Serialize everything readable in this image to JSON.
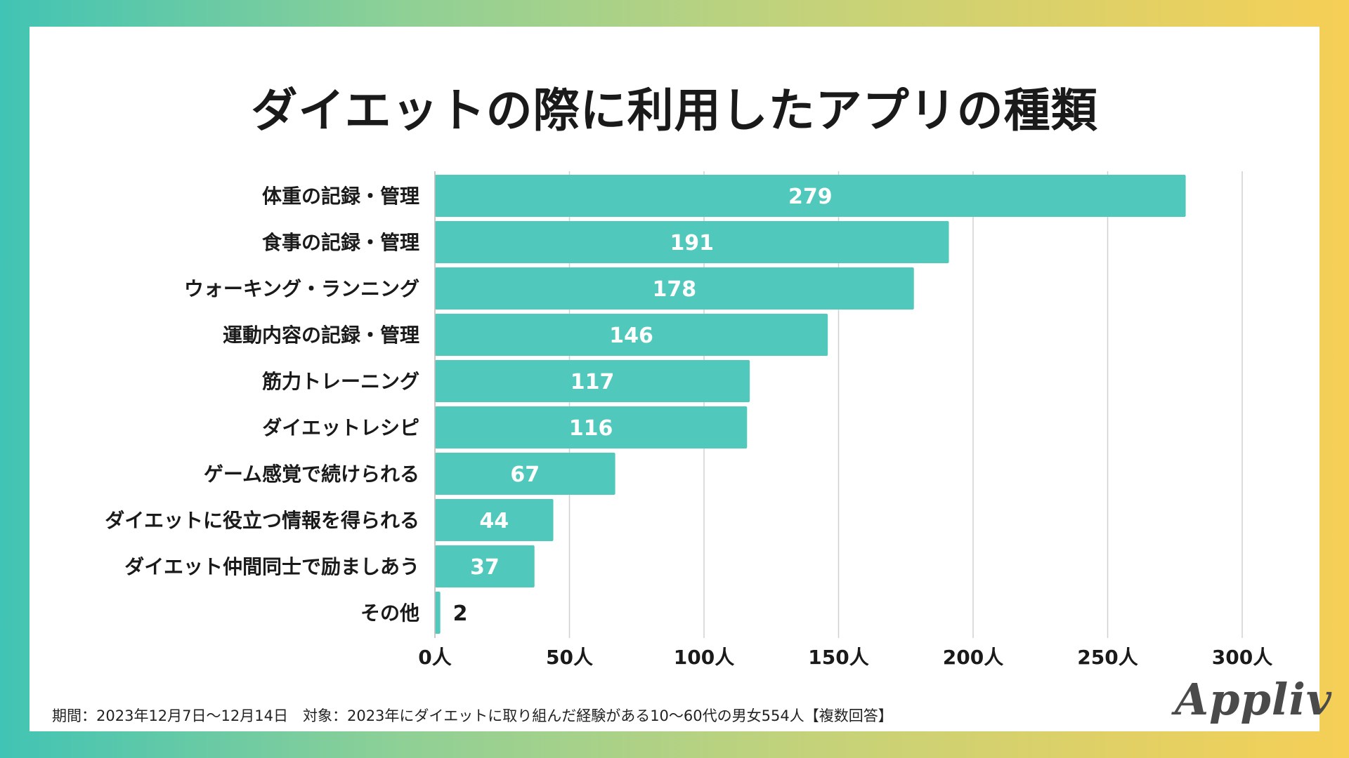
{
  "chart_data": {
    "type": "bar",
    "orientation": "horizontal",
    "title": "ダイエットの際に利用したアプリの種類",
    "categories": [
      "体重の記録・管理",
      "食事の記録・管理",
      "ウォーキング・ランニング",
      "運動内容の記録・管理",
      "筋力トレーニング",
      "ダイエットレシピ",
      "ゲーム感覚で続けられる",
      "ダイエットに役立つ情報を得られる",
      "ダイエット仲間同士で励ましあう",
      "その他"
    ],
    "values": [
      279,
      191,
      178,
      146,
      117,
      116,
      67,
      44,
      37,
      2
    ],
    "xlim": [
      0,
      300
    ],
    "ticks": [
      0,
      50,
      100,
      150,
      200,
      250,
      300
    ],
    "tick_labels": [
      "0人",
      "50人",
      "100人",
      "150人",
      "200人",
      "250人",
      "300人"
    ],
    "grid": true,
    "bar_color": "#50c8bc",
    "xlabel": "",
    "ylabel": ""
  },
  "footnote": "期間：2023年12月7日〜12月14日　対象：2023年にダイエットに取り組んだ経験がある10〜60代の男女554人【複数回答】",
  "logo_text": "Appliv"
}
